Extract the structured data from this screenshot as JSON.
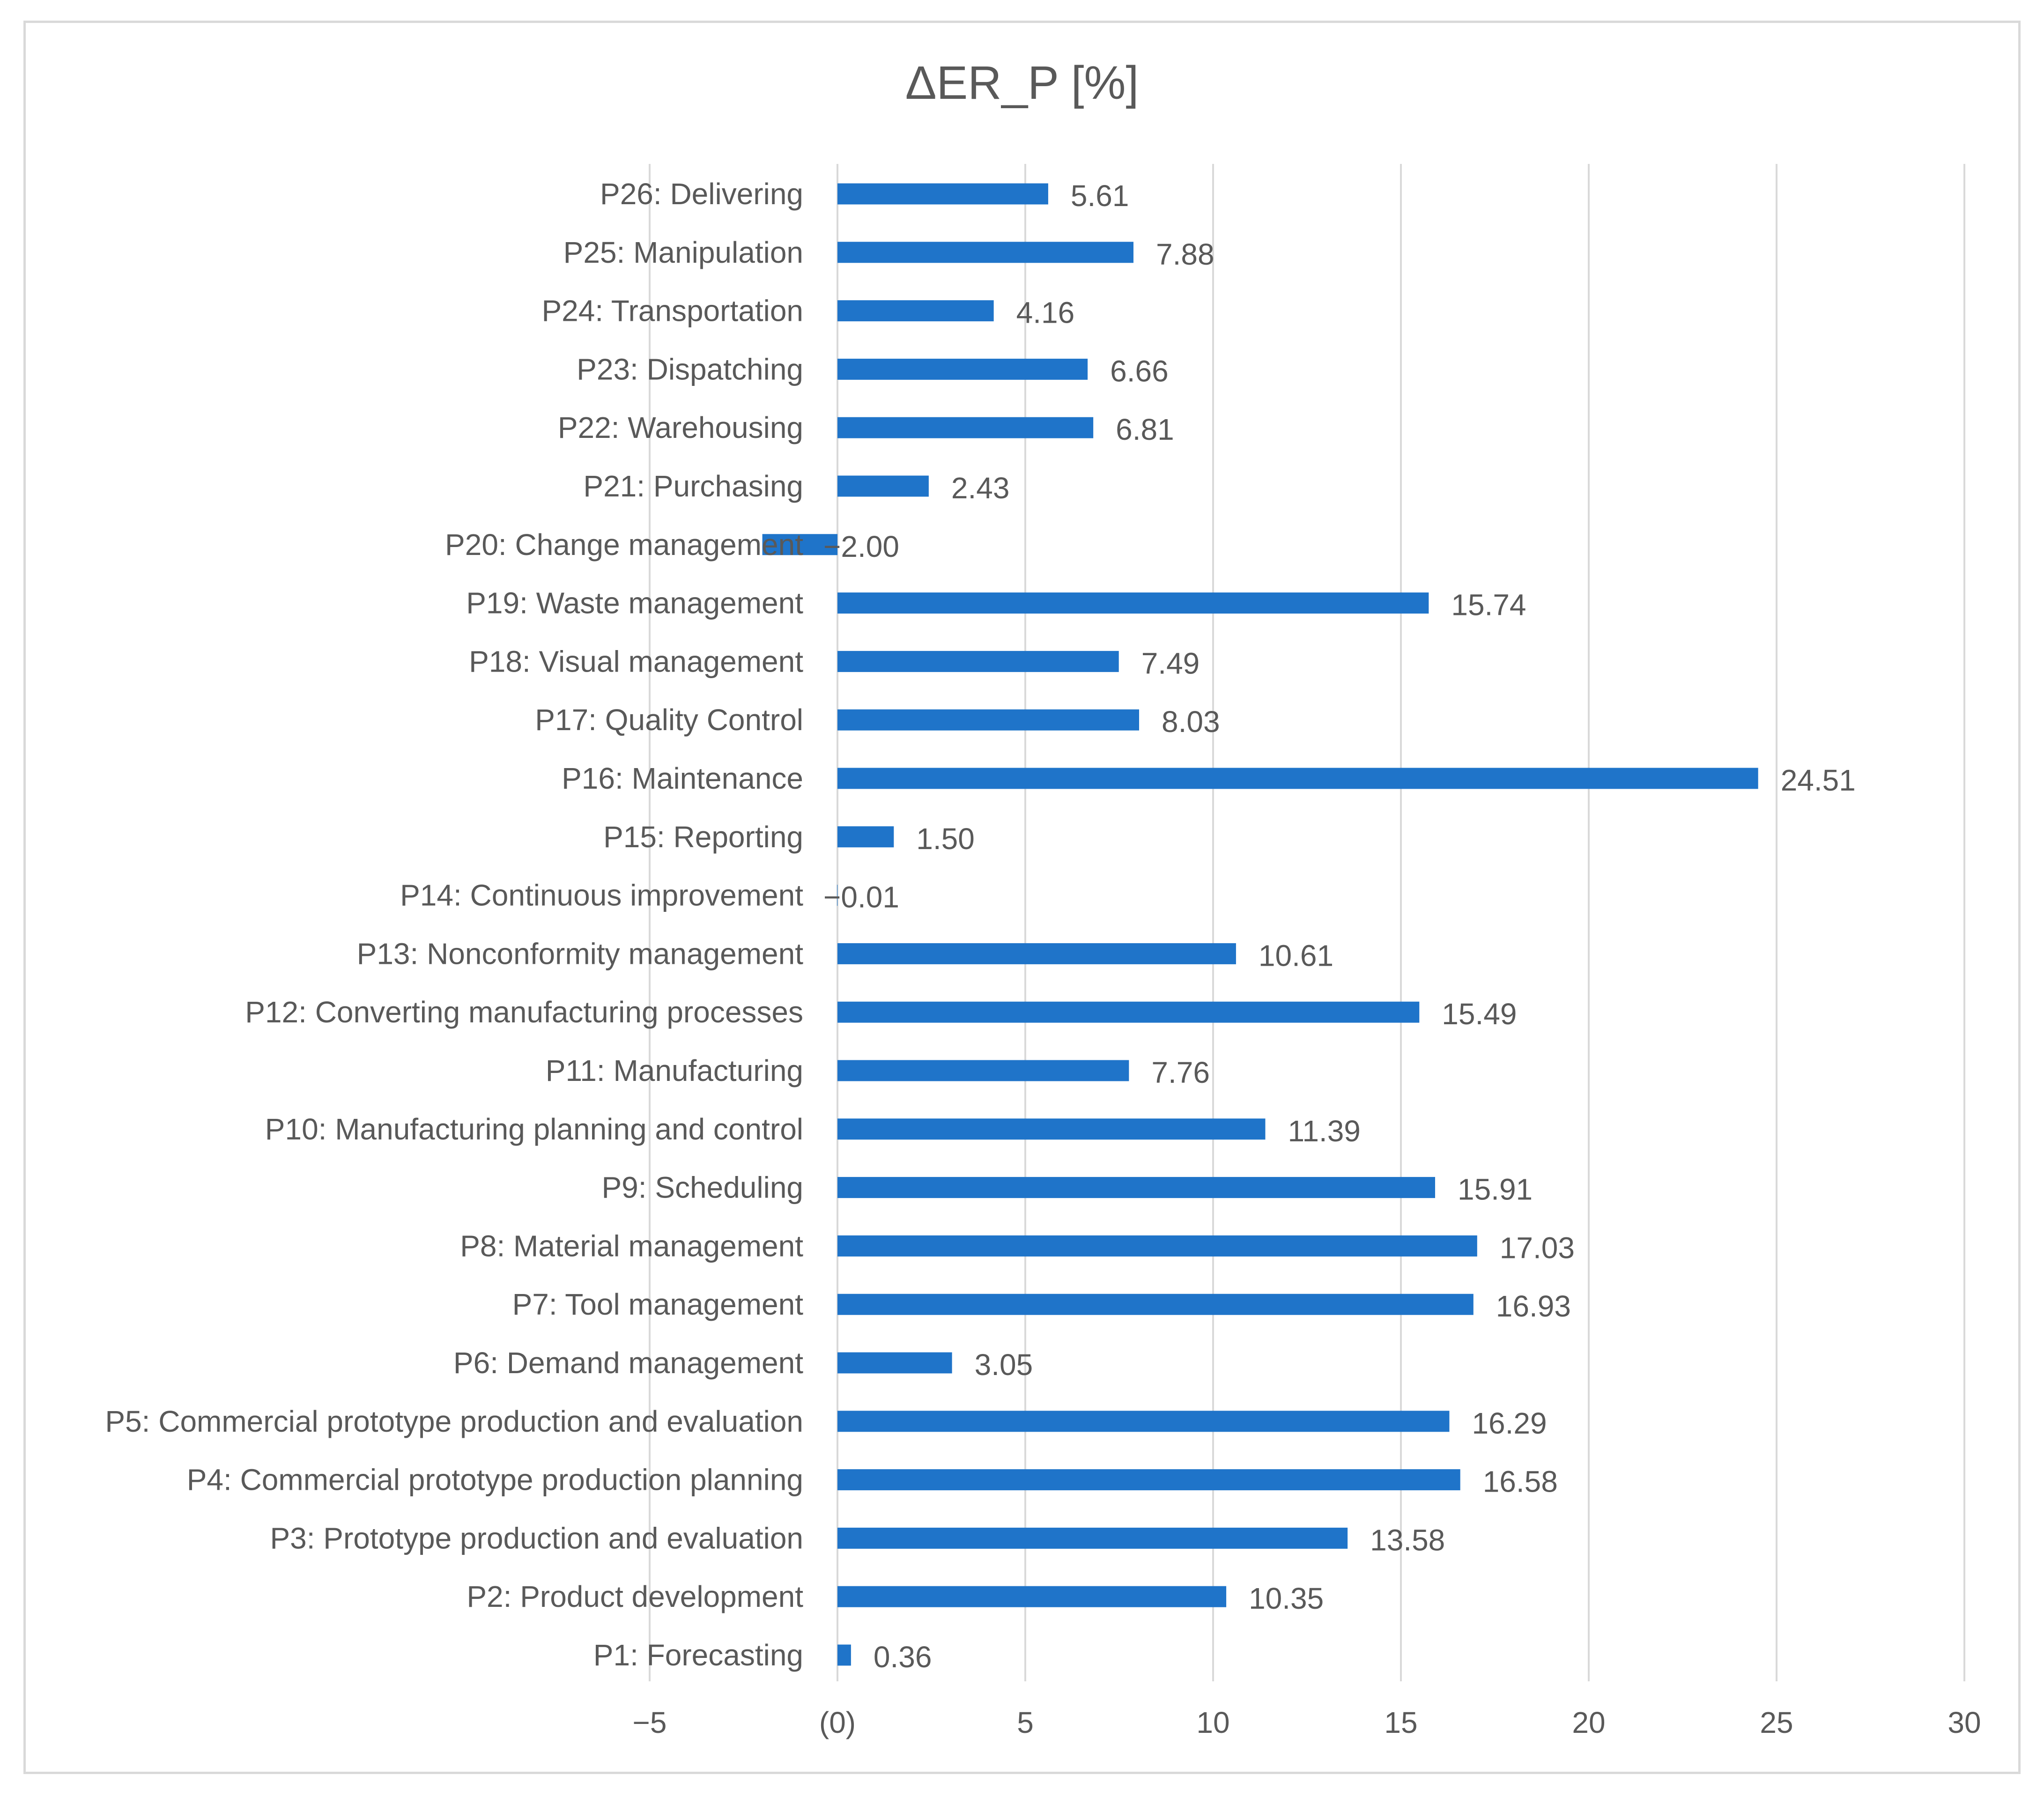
{
  "chart_data": {
    "type": "bar",
    "orientation": "horizontal",
    "title": "ΔER_P [%]",
    "xlabel": "",
    "ylabel": "",
    "xlim": [
      -5,
      30
    ],
    "ticks": [
      {
        "value": -5,
        "label": "−5"
      },
      {
        "value": 0,
        "label": "(0)"
      },
      {
        "value": 5,
        "label": "5"
      },
      {
        "value": 10,
        "label": "10"
      },
      {
        "value": 15,
        "label": "15"
      },
      {
        "value": 20,
        "label": "20"
      },
      {
        "value": 25,
        "label": "25"
      },
      {
        "value": 30,
        "label": "30"
      }
    ],
    "grid": "vertical",
    "legend": "none",
    "bar_color": "#1f74c9",
    "categories": [
      "P1: Forecasting",
      "P2: Product development",
      "P3: Prototype production and evaluation",
      "P4: Commercial prototype production planning",
      "P5: Commercial prototype production and evaluation",
      "P6: Demand management",
      "P7: Tool management",
      "P8: Material management",
      "P9: Scheduling",
      "P10: Manufacturing planning and control",
      "P11: Manufacturing",
      "P12: Converting manufacturing processes",
      "P13: Nonconformity management",
      "P14: Continuous improvement",
      "P15: Reporting",
      "P16: Maintenance",
      "P17: Quality Control",
      "P18: Visual management",
      "P19: Waste management",
      "P20: Change management",
      "P21: Purchasing",
      "P22: Warehousing",
      "P23: Dispatching",
      "P24: Transportation",
      "P25: Manipulation",
      "P26: Delivering"
    ],
    "values": [
      0.36,
      10.35,
      13.58,
      16.58,
      16.29,
      3.05,
      16.93,
      17.03,
      15.91,
      11.39,
      7.76,
      15.49,
      10.61,
      -0.01,
      1.5,
      24.51,
      8.03,
      7.49,
      15.74,
      -2.0,
      2.43,
      6.81,
      6.66,
      4.16,
      7.88,
      5.61
    ],
    "value_labels": [
      "0.36",
      "10.35",
      "13.58",
      "16.58",
      "16.29",
      "3.05",
      "16.93",
      "17.03",
      "15.91",
      "11.39",
      "7.76",
      "15.49",
      "10.61",
      "−0.01",
      "1.50",
      "24.51",
      "8.03",
      "7.49",
      "15.74",
      "−2.00",
      "2.43",
      "6.81",
      "6.66",
      "4.16",
      "7.88",
      "5.61"
    ]
  }
}
